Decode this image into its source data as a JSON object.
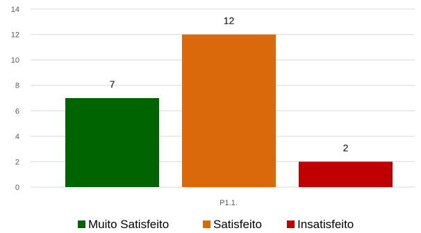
{
  "chart_data": {
    "type": "bar",
    "title": "",
    "xlabel": "",
    "ylabel": "",
    "categories": [
      "P1.1."
    ],
    "series": [
      {
        "name": "Muito Satisfeito",
        "values": [
          7
        ],
        "color": "#006400"
      },
      {
        "name": "Satisfeito",
        "values": [
          12
        ],
        "color": "#D9690B"
      },
      {
        "name": "Insatisfeito",
        "values": [
          2
        ],
        "color": "#C00000"
      }
    ],
    "ylim": [
      0,
      14
    ],
    "yticks": [
      0,
      2,
      4,
      6,
      8,
      10,
      12,
      14
    ],
    "grid": true,
    "legend": "bottom",
    "data_labels": true
  }
}
